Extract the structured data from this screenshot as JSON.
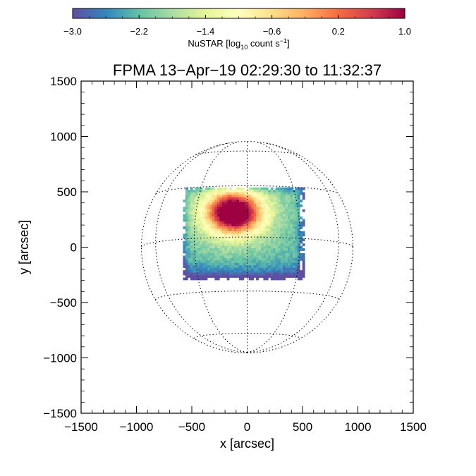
{
  "chart_data": {
    "type": "heatmap",
    "title": "FPMA 13−Apr−19 02:29:30 to 11:32:37",
    "xlabel": "x [arcsec]",
    "ylabel": "y [arcsec]",
    "xlim": [
      -1500,
      1500
    ],
    "ylim": [
      -1500,
      1500
    ],
    "x_ticks": [
      "−1500",
      "−1000",
      "−500",
      "0",
      "500",
      "1000",
      "1500"
    ],
    "x_tick_values": [
      -1500,
      -1000,
      -500,
      0,
      500,
      1000,
      1500
    ],
    "y_ticks": [
      "1500",
      "1000",
      "500",
      "0",
      "−500",
      "−1000",
      "−1500"
    ],
    "y_tick_values": [
      1500,
      1000,
      500,
      0,
      -500,
      -1000,
      -1500
    ],
    "colorbar": {
      "label_main": "NuSTAR [log",
      "label_sub": "10",
      "label_mid": " count s",
      "label_sup": "−1",
      "label_end": "]",
      "range": [
        -3.0,
        1.0
      ],
      "tick_values": [
        -3.0,
        -2.2,
        -1.4,
        -0.6,
        0.2,
        1.0
      ],
      "tick_labels": [
        "−3.0",
        "−2.2",
        "−1.4",
        "−0.6",
        "0.2",
        "1.0"
      ],
      "colormap": [
        "#5e4fa2",
        "#3288bd",
        "#66c2a5",
        "#abdda4",
        "#e6f598",
        "#ffffbf",
        "#fee08b",
        "#fdae61",
        "#f46d43",
        "#d53e4f",
        "#9e0142"
      ]
    },
    "solar_disk": {
      "radius": 955,
      "grid_latitudes": [
        -60,
        -30,
        0,
        30,
        60
      ],
      "grid_longitudes": [
        -60,
        -30,
        0,
        30,
        60
      ],
      "b0_deg": -5.5
    },
    "image_region": {
      "x_range": [
        -580,
        500
      ],
      "y_range": [
        -290,
        540
      ]
    },
    "hotspot": {
      "x": -120,
      "y": 310,
      "value": 1.0
    }
  }
}
